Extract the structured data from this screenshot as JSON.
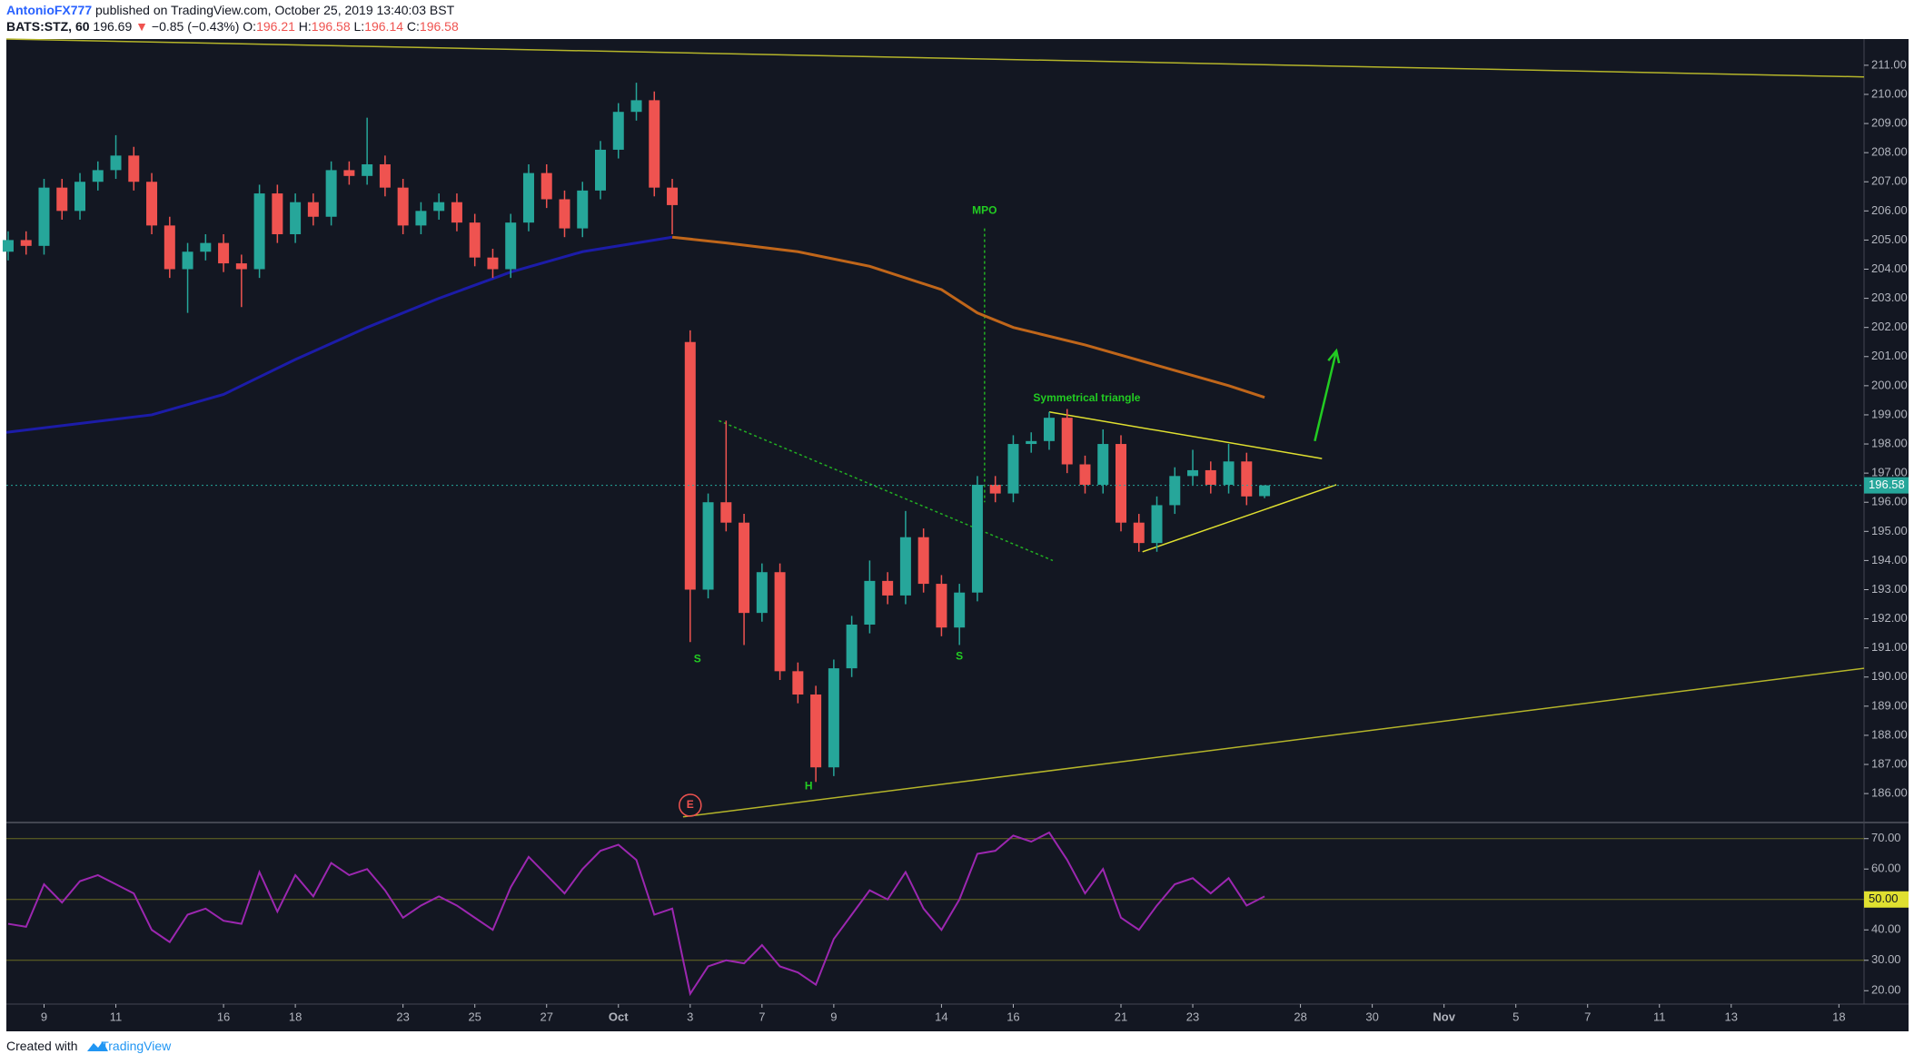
{
  "header": {
    "author": "AntonioFX777",
    "published": "published on TradingView.com, October 25, 2019 13:40:03 BST",
    "symbol": "BATS:STZ, 60",
    "last": "196.69",
    "arrow": "▼",
    "change": "−0.85 (−0.43%)",
    "ohlc": [
      {
        "label": "O:",
        "value": "196.21"
      },
      {
        "label": "H:",
        "value": "196.58"
      },
      {
        "label": "L:",
        "value": "196.14"
      },
      {
        "label": "C:",
        "value": "196.58"
      }
    ]
  },
  "footer": {
    "created": "Created with",
    "brand": "TradingView"
  },
  "chart_data": [
    {
      "type": "candlestick",
      "up_color": "#26a69a",
      "down_color": "#ef5350",
      "x": [
        -1,
        -0.5,
        0,
        0.5,
        1,
        1.5,
        2,
        2.5,
        3,
        3.5,
        4,
        4.5,
        5,
        5.5,
        6,
        6.5,
        7,
        7.5,
        8,
        8.5,
        9,
        9.5,
        10,
        10.5,
        11,
        11.5,
        12,
        12.5,
        13,
        13.5,
        14,
        14.5,
        15,
        15.5,
        16,
        16.5,
        17,
        17.5,
        18,
        18.5,
        19,
        19.5,
        20,
        20.5,
        21,
        21.5,
        22,
        22.5,
        23,
        23.5,
        24,
        24.5,
        25,
        25.5,
        26,
        26.5,
        27,
        27.5,
        28,
        28.5,
        29,
        29.5,
        30,
        30.5,
        31,
        31.5,
        32,
        32.5,
        33,
        33.5,
        34
      ],
      "open": [
        204.6,
        205.0,
        204.8,
        206.8,
        206.0,
        207.0,
        207.4,
        207.9,
        207.0,
        205.5,
        204.0,
        204.6,
        204.9,
        204.2,
        204.0,
        206.6,
        205.2,
        206.3,
        205.8,
        207.4,
        207.2,
        207.6,
        206.8,
        205.5,
        206.0,
        206.3,
        205.6,
        204.4,
        204.0,
        205.6,
        207.3,
        206.4,
        205.4,
        206.7,
        208.1,
        209.4,
        209.8,
        206.8,
        201.5,
        193.0,
        196.0,
        195.3,
        192.2,
        193.6,
        190.2,
        189.4,
        186.9,
        190.3,
        191.8,
        193.3,
        192.8,
        194.8,
        193.2,
        191.7,
        192.9,
        196.6,
        196.3,
        198.0,
        198.1,
        198.9,
        197.3,
        196.6,
        198.0,
        195.3,
        194.6,
        195.9,
        196.9,
        197.1,
        196.6,
        197.4,
        196.21
      ],
      "high": [
        205.3,
        205.3,
        207.1,
        207.1,
        207.3,
        207.7,
        208.6,
        208.2,
        207.3,
        205.8,
        204.9,
        205.2,
        205.2,
        204.5,
        206.9,
        206.9,
        206.6,
        206.6,
        207.7,
        207.7,
        209.2,
        207.9,
        207.1,
        206.3,
        206.6,
        206.6,
        205.9,
        204.7,
        205.9,
        207.6,
        207.6,
        206.7,
        207.0,
        208.4,
        209.7,
        210.4,
        210.1,
        207.1,
        201.9,
        196.3,
        198.8,
        195.6,
        193.9,
        193.9,
        190.5,
        189.7,
        190.6,
        192.1,
        194.0,
        193.6,
        195.7,
        195.1,
        193.5,
        193.2,
        196.9,
        196.9,
        198.3,
        198.4,
        199.1,
        199.2,
        197.6,
        198.5,
        198.3,
        195.6,
        196.2,
        197.2,
        197.8,
        197.4,
        198.0,
        197.7,
        196.58
      ],
      "low": [
        204.3,
        204.5,
        204.5,
        205.7,
        205.7,
        206.7,
        207.1,
        206.7,
        205.2,
        203.7,
        202.5,
        204.3,
        203.9,
        202.7,
        203.7,
        204.9,
        204.9,
        205.5,
        205.5,
        206.9,
        206.9,
        206.5,
        205.2,
        205.2,
        205.7,
        205.3,
        204.1,
        203.7,
        203.7,
        205.3,
        206.1,
        205.1,
        205.1,
        206.4,
        207.8,
        209.1,
        206.5,
        205.2,
        191.2,
        192.7,
        195.0,
        191.1,
        191.9,
        189.9,
        189.1,
        186.4,
        186.6,
        190.0,
        191.5,
        192.5,
        192.5,
        192.9,
        191.4,
        191.1,
        192.6,
        196.0,
        196.0,
        197.7,
        197.8,
        197.0,
        196.3,
        196.3,
        195.0,
        194.3,
        194.3,
        195.6,
        196.6,
        196.3,
        196.3,
        195.9,
        196.14
      ],
      "close": [
        205.0,
        204.8,
        206.8,
        206.0,
        207.0,
        207.4,
        207.9,
        207.0,
        205.5,
        204.0,
        204.6,
        204.9,
        204.2,
        204.0,
        206.6,
        205.2,
        206.3,
        205.8,
        207.4,
        207.2,
        207.6,
        206.8,
        205.5,
        206.0,
        206.3,
        205.6,
        204.4,
        204.0,
        205.6,
        207.3,
        206.4,
        205.4,
        206.7,
        208.1,
        209.4,
        209.8,
        206.8,
        206.2,
        193.0,
        196.0,
        195.3,
        192.2,
        193.6,
        190.2,
        189.4,
        186.9,
        190.3,
        191.8,
        193.3,
        192.8,
        194.8,
        193.2,
        191.7,
        192.9,
        196.6,
        196.3,
        198.0,
        198.1,
        198.9,
        197.3,
        196.6,
        198.0,
        195.3,
        194.6,
        195.9,
        196.9,
        197.1,
        196.6,
        197.4,
        196.2,
        196.58
      ],
      "moving_averages": [
        {
          "color": "#1c1ca8",
          "x": [
            -1.05,
            3,
            5,
            7,
            9,
            11,
            13,
            15,
            17.5
          ],
          "values": [
            198.4,
            199.0,
            199.7,
            200.9,
            202.0,
            203.0,
            203.9,
            204.6,
            205.1
          ]
        },
        {
          "color": "#c0661a",
          "x": [
            17.5,
            19,
            21,
            23,
            25,
            26,
            27,
            29,
            31,
            33,
            34
          ],
          "values": [
            205.1,
            204.9,
            204.6,
            204.1,
            203.3,
            202.5,
            202.0,
            201.4,
            200.7,
            200.0,
            199.6
          ]
        }
      ],
      "last_price": {
        "value": 196.58,
        "label": "196.58"
      },
      "last_color": "#26a69a",
      "xlim": [
        -1.05,
        50.7
      ],
      "ylim": [
        185.1,
        211.9
      ],
      "yticks": [
        {
          "value": 186,
          "label": "186.00"
        },
        {
          "value": 187,
          "label": "187.00"
        },
        {
          "value": 188,
          "label": "188.00"
        },
        {
          "value": 189,
          "label": "189.00"
        },
        {
          "value": 190,
          "label": "190.00"
        },
        {
          "value": 191,
          "label": "191.00"
        },
        {
          "value": 192,
          "label": "192.00"
        },
        {
          "value": 193,
          "label": "193.00"
        },
        {
          "value": 194,
          "label": "194.00"
        },
        {
          "value": 195,
          "label": "195.00"
        },
        {
          "value": 196,
          "label": "196.00"
        },
        {
          "value": 197,
          "label": "197.00"
        },
        {
          "value": 198,
          "label": "198.00"
        },
        {
          "value": 199,
          "label": "199.00"
        },
        {
          "value": 200,
          "label": "200.00"
        },
        {
          "value": 201,
          "label": "201.00"
        },
        {
          "value": 202,
          "label": "202.00"
        },
        {
          "value": 203,
          "label": "203.00"
        },
        {
          "value": 204,
          "label": "204.00"
        },
        {
          "value": 205,
          "label": "205.00"
        },
        {
          "value": 206,
          "label": "206.00"
        },
        {
          "value": 207,
          "label": "207.00"
        },
        {
          "value": 208,
          "label": "208.00"
        },
        {
          "value": 209,
          "label": "209.00"
        },
        {
          "value": 210,
          "label": "210.00"
        },
        {
          "value": 211,
          "label": "211.00"
        }
      ],
      "drawings": [
        {
          "color": "#b5b52a",
          "points": [
            [
              -1.05,
              211.9
            ],
            [
              50.7,
              210.6
            ]
          ]
        },
        {
          "color": "#b5b52a",
          "points": [
            [
              17.8,
              185.2
            ],
            [
              50.7,
              190.3
            ]
          ]
        },
        {
          "color": "#e0e030",
          "points": [
            [
              28,
              199.1
            ],
            [
              35.6,
              197.5
            ]
          ]
        },
        {
          "color": "#e0e030",
          "points": [
            [
              30.6,
              194.3
            ],
            [
              36.0,
              196.6
            ]
          ]
        },
        {
          "color": "#22b022",
          "dash": true,
          "points": [
            [
              18.8,
              198.8
            ],
            [
              28.1,
              194.0
            ]
          ]
        },
        {
          "color": "#22b022",
          "dash": true,
          "points": [
            [
              26.2,
              205.4
            ],
            [
              26.2,
              196.0
            ]
          ]
        },
        {
          "color": "#22cc22",
          "arrow": true,
          "points": [
            [
              35.4,
              198.1
            ],
            [
              36.0,
              201.2
            ]
          ]
        }
      ],
      "annotations": [
        {
          "text": "MPO",
          "x": 26.2,
          "y": 206.0,
          "color": "#22cc22"
        },
        {
          "text": "Symmetrical triangle",
          "x": 29.05,
          "y": 199.57,
          "color": "#22cc22"
        },
        {
          "text": "S",
          "x": 18.2,
          "y": 190.6,
          "color": "#22cc22"
        },
        {
          "text": "S",
          "x": 25.5,
          "y": 190.7,
          "color": "#22cc22"
        },
        {
          "text": "H",
          "x": 21.3,
          "y": 186.25,
          "color": "#22cc22"
        },
        {
          "text": "E",
          "x": 18.0,
          "y": 185.6,
          "color": "#ef5350",
          "circle": true
        }
      ]
    },
    {
      "type": "line",
      "color": "#9c27b0",
      "band_color": "#6b6b22",
      "x": [
        -1,
        -0.5,
        0,
        0.5,
        1,
        1.5,
        2,
        2.5,
        3,
        3.5,
        4,
        4.5,
        5,
        5.5,
        6,
        6.5,
        7,
        7.5,
        8,
        8.5,
        9,
        9.5,
        10,
        10.5,
        11,
        11.5,
        12,
        12.5,
        13,
        13.5,
        14,
        14.5,
        15,
        15.5,
        16,
        16.5,
        17,
        17.5,
        18,
        18.5,
        19,
        19.5,
        20,
        20.5,
        21,
        21.5,
        22,
        22.5,
        23,
        23.5,
        24,
        24.5,
        25,
        25.5,
        26,
        26.5,
        27,
        27.5,
        28,
        28.5,
        29,
        29.5,
        30,
        30.5,
        31,
        31.5,
        32,
        32.5,
        33,
        33.5,
        34
      ],
      "values": [
        42,
        41,
        55,
        49,
        56,
        58,
        55,
        52,
        40,
        36,
        45,
        47,
        43,
        42,
        59,
        46,
        58,
        51,
        62,
        58,
        60,
        53,
        44,
        48,
        51,
        48,
        44,
        40,
        54,
        64,
        58,
        52,
        60,
        66,
        68,
        63,
        45,
        47,
        19,
        28,
        30,
        29,
        35,
        28,
        26,
        22,
        37,
        45,
        53,
        50,
        59,
        47,
        40,
        50,
        65,
        66,
        71,
        69,
        72,
        63,
        52,
        60,
        44,
        40,
        48,
        55,
        57,
        52,
        57,
        48,
        51
      ],
      "bands": [
        70,
        50,
        30
      ],
      "midline": {
        "value": 50,
        "label": "50.00"
      },
      "midline_color": "#e0e030",
      "xlim": [
        -1.05,
        50.7
      ],
      "ylim": [
        16.8,
        74.4
      ],
      "yticks": [
        {
          "value": 20,
          "label": "20.00"
        },
        {
          "value": 30,
          "label": "30.00"
        },
        {
          "value": 40,
          "label": "40.00"
        },
        {
          "value": 60,
          "label": "60.00"
        },
        {
          "value": 70,
          "label": "70.00"
        }
      ],
      "xticks": [
        {
          "value": 0,
          "label": "9"
        },
        {
          "value": 2,
          "label": "11"
        },
        {
          "value": 5,
          "label": "16"
        },
        {
          "value": 7,
          "label": "18"
        },
        {
          "value": 10,
          "label": "23"
        },
        {
          "value": 12,
          "label": "25"
        },
        {
          "value": 14,
          "label": "27"
        },
        {
          "value": 16,
          "label": "Oct"
        },
        {
          "value": 18,
          "label": "3"
        },
        {
          "value": 20,
          "label": "7"
        },
        {
          "value": 22,
          "label": "9"
        },
        {
          "value": 25,
          "label": "14"
        },
        {
          "value": 27,
          "label": "16"
        },
        {
          "value": 30,
          "label": "21"
        },
        {
          "value": 32,
          "label": "23"
        },
        {
          "value": 35,
          "label": "28"
        },
        {
          "value": 37,
          "label": "30"
        },
        {
          "value": 39,
          "label": "Nov"
        },
        {
          "value": 41,
          "label": "5"
        },
        {
          "value": 43,
          "label": "7"
        },
        {
          "value": 45,
          "label": "11"
        },
        {
          "value": 47,
          "label": "13"
        },
        {
          "value": 50,
          "label": "18"
        }
      ]
    }
  ]
}
